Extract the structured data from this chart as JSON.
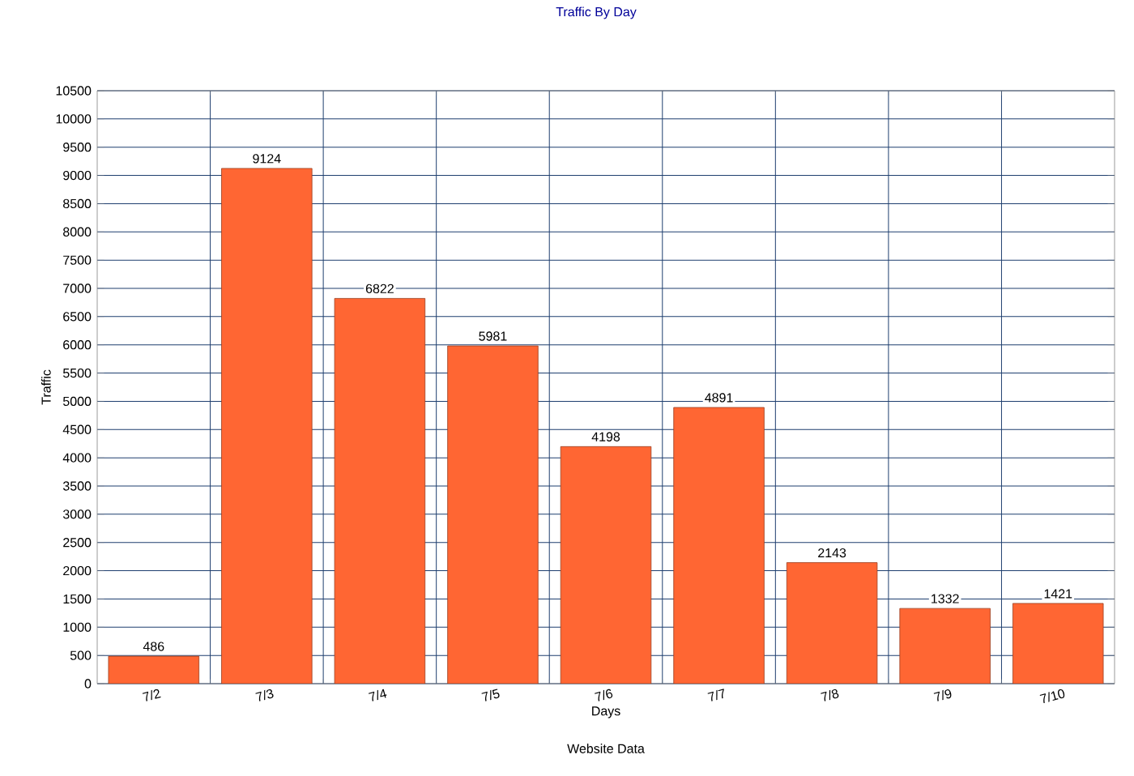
{
  "chart_data": {
    "type": "bar",
    "title": "Traffic By Day",
    "xlabel": "Days",
    "ylabel": "Traffic",
    "annotations": [
      "Website Data"
    ],
    "categories": [
      "7/2",
      "7/3",
      "7/4",
      "7/5",
      "7/6",
      "7/7",
      "7/8",
      "7/9",
      "7/10"
    ],
    "values": [
      486,
      9124,
      6822,
      5981,
      4198,
      4891,
      2143,
      1332,
      1421
    ],
    "color": "#ff6633",
    "ylim": [
      0,
      10500
    ],
    "yticks": [
      0,
      500,
      1000,
      1500,
      2000,
      2500,
      3000,
      3500,
      4000,
      4500,
      5000,
      5500,
      6000,
      6500,
      7000,
      7500,
      8000,
      8500,
      9000,
      9500,
      10000,
      10500
    ],
    "grid": true,
    "data_labels": true
  }
}
